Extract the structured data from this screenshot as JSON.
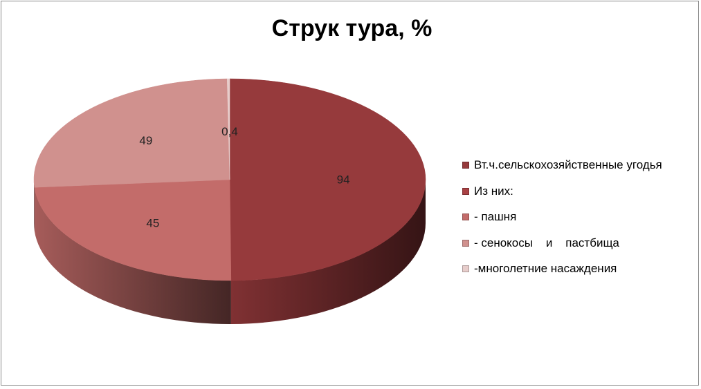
{
  "chart_data": {
    "type": "pie",
    "title": "Струк тура, %",
    "legend_position": "right",
    "categories": [
      "Вт.ч.сельскохозяйственные угодья",
      "Из них:",
      "- пашня",
      "- сенокосы    и    пастбища",
      "-многолетние насаждения"
    ],
    "values": [
      94,
      null,
      45,
      49,
      0.4
    ],
    "data_labels": [
      "94",
      "",
      "45",
      "49",
      "0,4"
    ],
    "colors": [
      "#963A3C",
      "#A94144",
      "#C36C6A",
      "#D0918E",
      "#E7CDCB"
    ]
  }
}
